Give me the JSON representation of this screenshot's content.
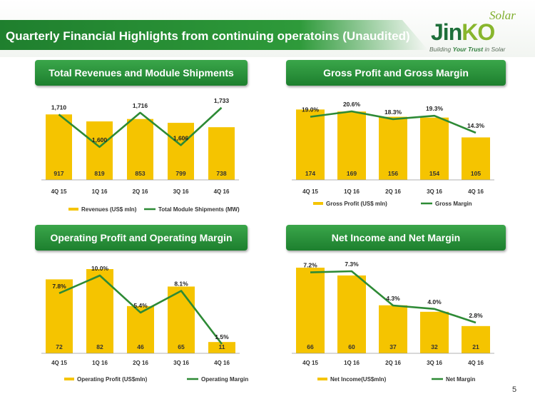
{
  "header": {
    "title": "Quarterly Financial Highlights from continuing operatoins (Unaudited)",
    "logo_solar": "Solar",
    "logo_word_a": "Jin",
    "logo_word_b": "KO",
    "logo_tag_a": "Building ",
    "logo_tag_b": "Your Trust",
    "logo_tag_c": " in Solar"
  },
  "page_number": "5",
  "colors": {
    "bar": "#f5c400",
    "line": "#2d8a35",
    "header_green": "#1f7f2e"
  },
  "chart_data": [
    {
      "type": "bar",
      "title": "Total Revenues and Module Shipments",
      "categories": [
        "4Q 15",
        "1Q 16",
        "2Q 16",
        "3Q 16",
        "4Q 16"
      ],
      "series": [
        {
          "name": "Revenues (US$ mln)",
          "kind": "bar",
          "values": [
            917,
            819,
            853,
            799,
            738
          ],
          "labels": [
            "917",
            "819",
            "853",
            "799",
            "738"
          ]
        },
        {
          "name": "Total Module Shipments (MW)",
          "kind": "line",
          "values": [
            1710,
            1600,
            1716,
            1606,
            1733
          ],
          "labels": [
            "1,710",
            "1,600",
            "1,716",
            "1,606",
            "1,733"
          ]
        }
      ],
      "legend": "bottom"
    },
    {
      "type": "bar",
      "title": "Gross Profit and Gross Margin",
      "categories": [
        "4Q 15",
        "1Q 16",
        "2Q 16",
        "3Q 16",
        "4Q 16"
      ],
      "series": [
        {
          "name": "Gross Profit (US$ mln)",
          "kind": "bar",
          "values": [
            174,
            169,
            156,
            154,
            105
          ],
          "labels": [
            "174",
            "169",
            "156",
            "154",
            "105"
          ]
        },
        {
          "name": "Gross Margin",
          "kind": "line",
          "values": [
            19.0,
            20.6,
            18.3,
            19.3,
            14.3
          ],
          "labels": [
            "19.0%",
            "20.6%",
            "18.3%",
            "19.3%",
            "14.3%"
          ]
        }
      ],
      "legend": "bottom"
    },
    {
      "type": "bar",
      "title": "Operating Profit and Operating Margin",
      "categories": [
        "4Q 15",
        "1Q 16",
        "2Q 16",
        "3Q 16",
        "4Q 16"
      ],
      "series": [
        {
          "name": "Operating Profit (US$mln)",
          "kind": "bar",
          "values": [
            72,
            82,
            46,
            65,
            11
          ],
          "labels": [
            "72",
            "82",
            "46",
            "65",
            "11"
          ]
        },
        {
          "name": "Operating Margin",
          "kind": "line",
          "values": [
            7.8,
            10.0,
            5.4,
            8.1,
            1.5
          ],
          "labels": [
            "7.8%",
            "10.0%",
            "5.4%",
            "8.1%",
            "1.5%"
          ]
        }
      ],
      "legend": "bottom"
    },
    {
      "type": "bar",
      "title": "Net Income and Net Margin",
      "categories": [
        "4Q 15",
        "1Q 16",
        "2Q 16",
        "3Q 16",
        "4Q 16"
      ],
      "series": [
        {
          "name": "Net Income(US$mln)",
          "kind": "bar",
          "values": [
            66,
            60,
            37,
            32,
            21
          ],
          "labels": [
            "66",
            "60",
            "37",
            "32",
            "21"
          ]
        },
        {
          "name": "Net Margin",
          "kind": "line",
          "values": [
            7.2,
            7.3,
            4.3,
            4.0,
            2.8
          ],
          "labels": [
            "7.2%",
            "7.3%",
            "4.3%",
            "4.0%",
            "2.8%"
          ]
        }
      ],
      "legend": "bottom"
    }
  ]
}
